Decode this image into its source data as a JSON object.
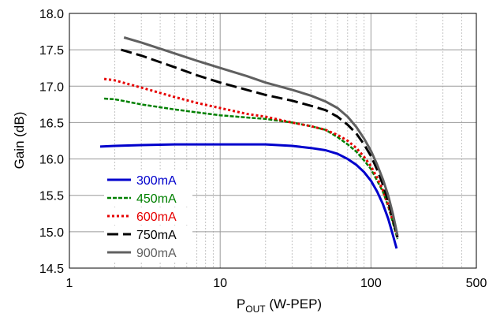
{
  "chart_data": {
    "type": "line",
    "xscale": "log",
    "xlim": [
      1,
      500
    ],
    "ylim": [
      14.5,
      18.0
    ],
    "grid": true,
    "legend_placement": "bottom-left",
    "xlabel": {
      "main": "P",
      "sub": "OUT",
      "rest": " (W-PEP)"
    },
    "ylabel": "Gain (dB)",
    "xticks": [
      {
        "value": 1,
        "label": "1"
      },
      {
        "value": 10,
        "label": "10"
      },
      {
        "value": 100,
        "label": "100"
      },
      {
        "value": 500,
        "label": "500"
      }
    ],
    "yticks": [
      {
        "value": 14.5,
        "label": "14.5"
      },
      {
        "value": 15.0,
        "label": "15.0"
      },
      {
        "value": 15.5,
        "label": "15.5"
      },
      {
        "value": 16.0,
        "label": "16.0"
      },
      {
        "value": 16.5,
        "label": "16.5"
      },
      {
        "value": 17.0,
        "label": "17.0"
      },
      {
        "value": 17.5,
        "label": "17.5"
      },
      {
        "value": 18.0,
        "label": "18.0"
      }
    ],
    "series": [
      {
        "name": "300mA",
        "color": "#0000cc",
        "style": "solid",
        "x": [
          1.6,
          2,
          3,
          5,
          7,
          10,
          20,
          30,
          40,
          50,
          60,
          70,
          80,
          90,
          100,
          110,
          120,
          130,
          140,
          148
        ],
        "y": [
          16.17,
          16.18,
          16.19,
          16.2,
          16.2,
          16.2,
          16.2,
          16.18,
          16.15,
          16.12,
          16.07,
          16.0,
          15.92,
          15.82,
          15.7,
          15.55,
          15.38,
          15.18,
          14.95,
          14.77
        ]
      },
      {
        "name": "450mA",
        "color": "#008000",
        "style": "dash",
        "x": [
          1.7,
          2,
          3,
          5,
          7,
          10,
          15,
          20,
          30,
          40,
          50,
          60,
          70,
          80,
          90,
          100,
          110,
          120,
          130,
          140,
          150
        ],
        "y": [
          16.83,
          16.82,
          16.75,
          16.68,
          16.64,
          16.6,
          16.57,
          16.55,
          16.5,
          16.45,
          16.4,
          16.3,
          16.2,
          16.1,
          15.98,
          15.86,
          15.7,
          15.55,
          15.35,
          15.12,
          14.9
        ]
      },
      {
        "name": "600mA",
        "color": "#e60000",
        "style": "dot",
        "x": [
          1.7,
          2,
          3,
          5,
          7,
          10,
          15,
          20,
          30,
          40,
          50,
          60,
          70,
          80,
          90,
          100,
          110,
          120,
          130,
          140,
          150
        ],
        "y": [
          17.1,
          17.08,
          16.98,
          16.85,
          16.77,
          16.7,
          16.62,
          16.58,
          16.5,
          16.45,
          16.4,
          16.33,
          16.25,
          16.15,
          16.03,
          15.9,
          15.74,
          15.57,
          15.37,
          15.15,
          14.93
        ]
      },
      {
        "name": "750mA",
        "color": "#000000",
        "style": "longdash",
        "x": [
          2.2,
          3,
          5,
          7,
          10,
          15,
          20,
          30,
          40,
          50,
          60,
          70,
          80,
          90,
          100,
          110,
          120,
          130,
          140,
          150
        ],
        "y": [
          17.5,
          17.42,
          17.26,
          17.15,
          17.05,
          16.95,
          16.88,
          16.8,
          16.73,
          16.67,
          16.58,
          16.47,
          16.35,
          16.2,
          16.04,
          15.85,
          15.65,
          15.42,
          15.17,
          14.92
        ]
      },
      {
        "name": "900mA",
        "color": "#606060",
        "style": "solid",
        "x": [
          2.3,
          3,
          5,
          7,
          10,
          15,
          20,
          30,
          40,
          50,
          60,
          70,
          80,
          90,
          100,
          110,
          120,
          130,
          140,
          150
        ],
        "y": [
          17.67,
          17.6,
          17.45,
          17.35,
          17.25,
          17.14,
          17.05,
          16.95,
          16.87,
          16.79,
          16.7,
          16.58,
          16.44,
          16.28,
          16.11,
          15.92,
          15.72,
          15.5,
          15.24,
          14.95
        ]
      }
    ]
  }
}
